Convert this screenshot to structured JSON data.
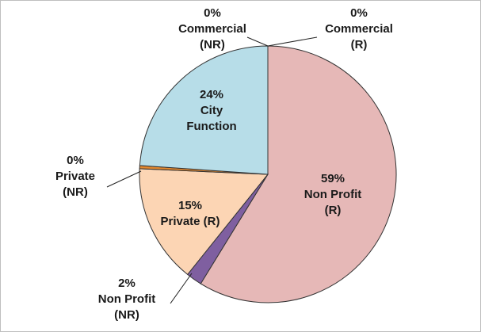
{
  "chart_data": {
    "type": "pie",
    "categories": [
      [
        "Commercial",
        "(R)"
      ],
      [
        "Non Profit",
        "(R)"
      ],
      [
        "Non Profit",
        "(NR)"
      ],
      [
        "Private (R)"
      ],
      [
        "Private",
        "(NR)"
      ],
      [
        "City",
        "Function"
      ],
      [
        "Commercial",
        "(NR)"
      ]
    ],
    "values": [
      0,
      59,
      2,
      15,
      0.4,
      24,
      0
    ],
    "value_labels": [
      "0%",
      "59%",
      "2%",
      "15%",
      "0%",
      "24%",
      "0%"
    ],
    "colors": [
      "#c0504d",
      "#e6b8b7",
      "#7f5fa0",
      "#fcd5b4",
      "#e3882f",
      "#b7dde8",
      "#4f81bd"
    ]
  }
}
